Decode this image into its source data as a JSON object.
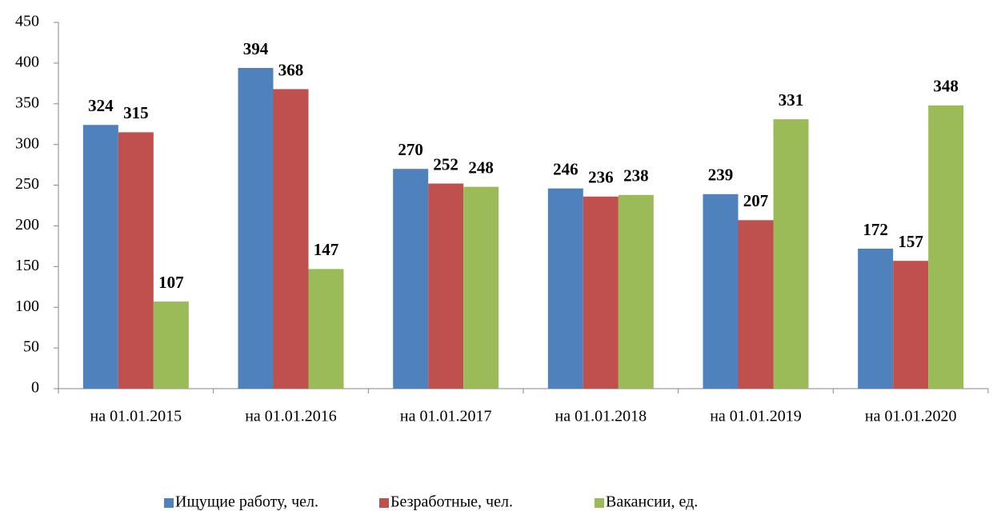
{
  "chart_data": {
    "type": "bar",
    "categories": [
      "на 01.01.2015",
      "на 01.01.2016",
      "на 01.01.2017",
      "на 01.01.2018",
      "на 01.01.2019",
      "на 01.01.2020"
    ],
    "series": [
      {
        "name": "Ищущие работу, чел.",
        "color": "#4f81bd",
        "values": [
          324,
          394,
          270,
          246,
          239,
          172
        ]
      },
      {
        "name": "Безработные, чел.",
        "color": "#c0504d",
        "values": [
          315,
          368,
          252,
          236,
          207,
          157
        ]
      },
      {
        "name": "Вакансии, ед.",
        "color": "#9bbb59",
        "values": [
          107,
          147,
          248,
          238,
          331,
          348
        ]
      }
    ],
    "ylim": [
      0,
      450
    ],
    "yticks": [
      0,
      50,
      100,
      150,
      200,
      250,
      300,
      350,
      400,
      450
    ],
    "grid": false,
    "legend": "bottom",
    "data_labels": true
  }
}
